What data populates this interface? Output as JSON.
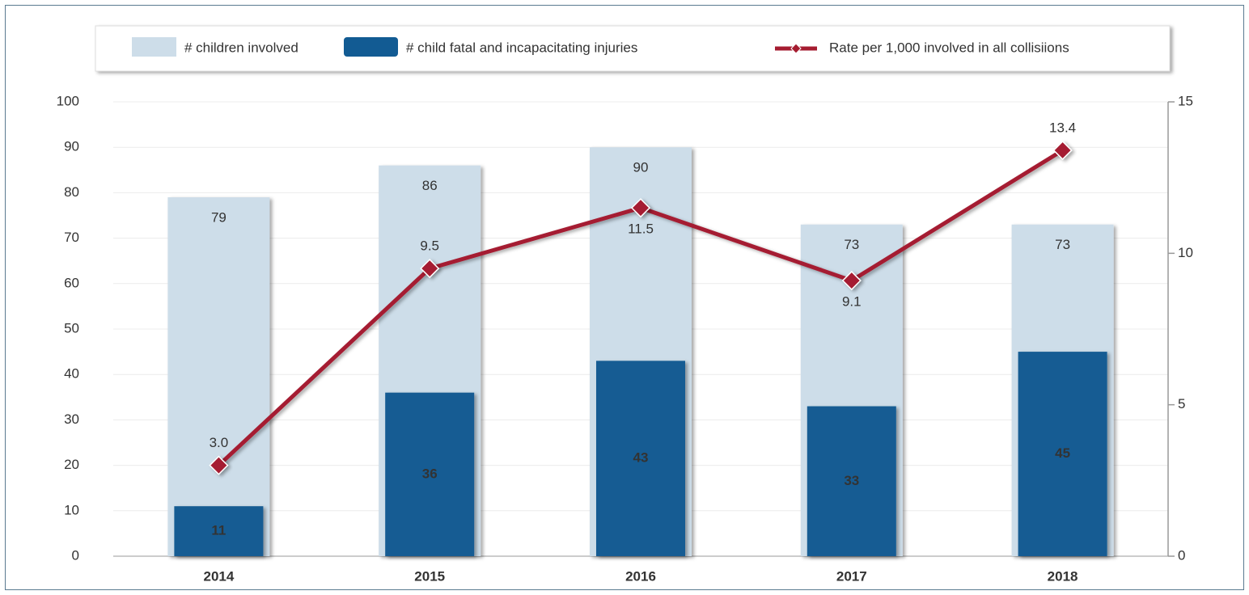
{
  "chart_data": {
    "type": "bar",
    "categories": [
      "2014",
      "2015",
      "2016",
      "2017",
      "2018"
    ],
    "series": [
      {
        "name": "# children involved",
        "type": "bar",
        "color": "#cddde9",
        "values": [
          79,
          86,
          90,
          73,
          73
        ]
      },
      {
        "name": "# child fatal and incapacitating injuries",
        "type": "bar",
        "color": "#125b93",
        "values": [
          11,
          36,
          43,
          33,
          45
        ]
      },
      {
        "name": "Rate per 1,000 involved in all collisiions",
        "type": "line",
        "axis": "y2",
        "color": "#a51c30",
        "values": [
          3.0,
          9.5,
          11.5,
          9.1,
          13.4
        ],
        "value_labels": [
          "3.0",
          "9.5",
          "11.5",
          "9.1",
          "13.4"
        ]
      }
    ],
    "ylim": [
      0,
      100
    ],
    "yticks": [
      0,
      10,
      20,
      30,
      40,
      50,
      60,
      70,
      80,
      90,
      100
    ],
    "y2lim": [
      0,
      15
    ],
    "y2ticks": [
      0,
      5,
      10,
      15
    ],
    "grid": true,
    "legend": "top"
  }
}
